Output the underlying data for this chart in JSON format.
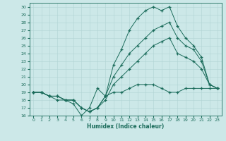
{
  "bg_color": "#cce8e8",
  "line_color": "#1a6b5a",
  "grid_color": "#b0d4d4",
  "xlabel": "Humidex (Indice chaleur)",
  "xlim": [
    -0.5,
    23.5
  ],
  "ylim": [
    16,
    30.5
  ],
  "yticks": [
    16,
    17,
    18,
    19,
    20,
    21,
    22,
    23,
    24,
    25,
    26,
    27,
    28,
    29,
    30
  ],
  "xticks": [
    0,
    1,
    2,
    3,
    4,
    5,
    6,
    7,
    8,
    9,
    10,
    11,
    12,
    13,
    14,
    15,
    16,
    17,
    18,
    19,
    20,
    21,
    22,
    23
  ],
  "line1_x": [
    0,
    1,
    2,
    3,
    4,
    5,
    6,
    7,
    8,
    9,
    10,
    11,
    12,
    13,
    14,
    15,
    16,
    17,
    18,
    19,
    20,
    21,
    22,
    23
  ],
  "line1_y": [
    19,
    19,
    18.5,
    18,
    18,
    17.5,
    16,
    17,
    19.5,
    18.5,
    19,
    19,
    19.5,
    20,
    20,
    20,
    19.5,
    19,
    19,
    19.5,
    19.5,
    19.5,
    19.5,
    19.5
  ],
  "line2_x": [
    0,
    1,
    2,
    3,
    4,
    5,
    6,
    7,
    8,
    9,
    10,
    11,
    12,
    13,
    14,
    15,
    16,
    17,
    18,
    19,
    20,
    21,
    22,
    23
  ],
  "line2_y": [
    19,
    19,
    18.5,
    18.5,
    18,
    18,
    17,
    16.5,
    17,
    18,
    20,
    21,
    22,
    23,
    24,
    25,
    25.5,
    26,
    24,
    23.5,
    23,
    22,
    20,
    19.5
  ],
  "line3_x": [
    0,
    1,
    2,
    3,
    4,
    5,
    6,
    7,
    8,
    9,
    10,
    11,
    12,
    13,
    14,
    15,
    16,
    17,
    18,
    19,
    20,
    21,
    22,
    23
  ],
  "line3_y": [
    19,
    19,
    18.5,
    18.5,
    18,
    18,
    17,
    16.5,
    17,
    18.5,
    21,
    22.5,
    24,
    25,
    26,
    27,
    27.5,
    28,
    26,
    25,
    24.5,
    23,
    20,
    19.5
  ],
  "line4_x": [
    0,
    1,
    2,
    3,
    4,
    5,
    6,
    7,
    8,
    9,
    10,
    11,
    12,
    13,
    14,
    15,
    16,
    17,
    18,
    19,
    20,
    21,
    22,
    23
  ],
  "line4_y": [
    19,
    19,
    18.5,
    18.5,
    18,
    18,
    17,
    16.5,
    17,
    18.5,
    22.5,
    24.5,
    27,
    28.5,
    29.5,
    30,
    29.5,
    30,
    27.5,
    26,
    25,
    23.5,
    20,
    19.5
  ]
}
